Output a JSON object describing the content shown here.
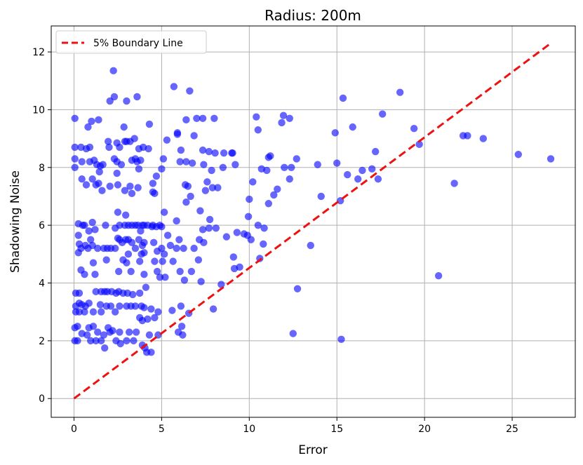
{
  "chart_data": {
    "type": "scatter",
    "title": "Radius: 200m",
    "xlabel": "Error",
    "ylabel": "Shadowing Noise",
    "xlim": [
      -1.3,
      28.6
    ],
    "ylim": [
      -0.65,
      12.9
    ],
    "xticks": [
      0,
      5,
      10,
      15,
      20,
      25
    ],
    "yticks": [
      0,
      2,
      4,
      6,
      8,
      10,
      12
    ],
    "grid": true,
    "legend_position": "top-left",
    "colors": {
      "points": "#0000ff",
      "boundary": "#ee1111",
      "grid": "#b0b0b0"
    },
    "boundary_line": {
      "name": "5% Boundary Line",
      "x": [
        0,
        27.2
      ],
      "y": [
        0,
        12.3
      ]
    },
    "series": [
      {
        "name": "",
        "points": [
          [
            0.05,
            9.7
          ],
          [
            0.05,
            8.7
          ],
          [
            0.05,
            8.3
          ],
          [
            0.05,
            8.0
          ],
          [
            0.1,
            3.65
          ],
          [
            0.1,
            3.2
          ],
          [
            0.1,
            3.0
          ],
          [
            0.05,
            2.45
          ],
          [
            0.05,
            2.0
          ],
          [
            0.25,
            6.05
          ],
          [
            0.25,
            5.65
          ],
          [
            0.3,
            5.35
          ],
          [
            0.25,
            5.05
          ],
          [
            0.3,
            3.65
          ],
          [
            0.3,
            3.3
          ],
          [
            0.3,
            3.0
          ],
          [
            0.2,
            2.5
          ],
          [
            0.2,
            2.0
          ],
          [
            0.4,
            8.7
          ],
          [
            0.45,
            8.2
          ],
          [
            0.45,
            7.6
          ],
          [
            0.5,
            6.0
          ],
          [
            0.4,
            5.2
          ],
          [
            0.4,
            4.45
          ],
          [
            0.45,
            3.25
          ],
          [
            0.45,
            2.25
          ],
          [
            0.6,
            6.0
          ],
          [
            0.65,
            5.3
          ],
          [
            0.6,
            4.3
          ],
          [
            0.65,
            3.2
          ],
          [
            0.6,
            3.0
          ],
          [
            0.7,
            8.65
          ],
          [
            0.7,
            7.4
          ],
          [
            0.75,
            2.2
          ],
          [
            0.8,
            9.4
          ],
          [
            0.85,
            5.8
          ],
          [
            0.8,
            5.2
          ],
          [
            0.85,
            3.3
          ],
          [
            0.85,
            2.45
          ],
          [
            0.9,
            8.7
          ],
          [
            0.9,
            8.2
          ],
          [
            0.95,
            5.5
          ],
          [
            0.95,
            2.0
          ],
          [
            1.0,
            9.6
          ],
          [
            1.05,
            7.6
          ],
          [
            1.05,
            6.1
          ],
          [
            1.05,
            5.3
          ],
          [
            1.1,
            4.7
          ],
          [
            1.1,
            3.0
          ],
          [
            1.1,
            2.5
          ],
          [
            1.15,
            8.25
          ],
          [
            1.2,
            5.85
          ],
          [
            1.2,
            4.3
          ],
          [
            1.25,
            3.7
          ],
          [
            1.25,
            2.0
          ],
          [
            1.25,
            7.4
          ],
          [
            1.3,
            8.1
          ],
          [
            1.35,
            5.2
          ],
          [
            1.35,
            2.3
          ],
          [
            1.4,
            9.65
          ],
          [
            1.4,
            7.45
          ],
          [
            1.45,
            7.85
          ],
          [
            1.5,
            8.05
          ],
          [
            1.5,
            3.25
          ],
          [
            1.55,
            3.7
          ],
          [
            1.55,
            3.0
          ],
          [
            1.55,
            2.0
          ],
          [
            1.6,
            7.2
          ],
          [
            1.65,
            8.1
          ],
          [
            1.7,
            5.2
          ],
          [
            1.7,
            2.2
          ],
          [
            1.75,
            1.75
          ],
          [
            1.75,
            3.7
          ],
          [
            1.8,
            6.0
          ],
          [
            1.85,
            4.8
          ],
          [
            1.85,
            3.2
          ],
          [
            1.9,
            5.2
          ],
          [
            1.9,
            3.7
          ],
          [
            1.95,
            2.45
          ],
          [
            1.95,
            8.9
          ],
          [
            2.0,
            8.7
          ],
          [
            2.05,
            7.35
          ],
          [
            2.05,
            2.3
          ],
          [
            2.05,
            10.3
          ],
          [
            2.1,
            5.2
          ],
          [
            2.1,
            3.2
          ],
          [
            2.15,
            3.7
          ],
          [
            2.2,
            2.35
          ],
          [
            2.25,
            11.35
          ],
          [
            2.3,
            10.45
          ],
          [
            2.3,
            8.3
          ],
          [
            2.35,
            5.9
          ],
          [
            2.35,
            5.2
          ],
          [
            2.35,
            3.0
          ],
          [
            2.4,
            3.65
          ],
          [
            2.4,
            2.0
          ],
          [
            2.45,
            8.85
          ],
          [
            2.45,
            8.2
          ],
          [
            2.45,
            7.8
          ],
          [
            2.5,
            7.4
          ],
          [
            2.5,
            6.45
          ],
          [
            2.5,
            5.55
          ],
          [
            2.55,
            4.4
          ],
          [
            2.55,
            3.7
          ],
          [
            2.6,
            8.7
          ],
          [
            2.6,
            6.0
          ],
          [
            2.6,
            5.5
          ],
          [
            2.6,
            3.2
          ],
          [
            2.6,
            2.3
          ],
          [
            2.65,
            1.9
          ],
          [
            2.7,
            8.1
          ],
          [
            2.75,
            5.4
          ],
          [
            2.8,
            4.8
          ],
          [
            2.8,
            3.65
          ],
          [
            2.85,
            9.4
          ],
          [
            2.9,
            8.9
          ],
          [
            2.9,
            7.2
          ],
          [
            2.9,
            6.0
          ],
          [
            2.95,
            6.35
          ],
          [
            2.95,
            5.5
          ],
          [
            3.0,
            10.3
          ],
          [
            3.0,
            8.9
          ],
          [
            3.0,
            4.7
          ],
          [
            3.0,
            3.2
          ],
          [
            3.0,
            2.0
          ],
          [
            3.05,
            3.65
          ],
          [
            3.1,
            6.0
          ],
          [
            3.1,
            5.5
          ],
          [
            3.1,
            5.0
          ],
          [
            3.15,
            2.3
          ],
          [
            3.2,
            8.9
          ],
          [
            3.2,
            7.35
          ],
          [
            3.25,
            4.4
          ],
          [
            3.25,
            3.2
          ],
          [
            3.3,
            8.25
          ],
          [
            3.3,
            7.1
          ],
          [
            3.3,
            6.0
          ],
          [
            3.3,
            5.4
          ],
          [
            3.35,
            3.6
          ],
          [
            3.4,
            2.0
          ],
          [
            3.45,
            9.0
          ],
          [
            3.5,
            8.3
          ],
          [
            3.5,
            6.0
          ],
          [
            3.5,
            5.2
          ],
          [
            3.5,
            3.2
          ],
          [
            3.55,
            2.3
          ],
          [
            3.6,
            10.45
          ],
          [
            3.6,
            8.2
          ],
          [
            3.65,
            7.3
          ],
          [
            3.65,
            6.0
          ],
          [
            3.7,
            8.65
          ],
          [
            3.7,
            7.95
          ],
          [
            3.7,
            5.5
          ],
          [
            3.75,
            4.75
          ],
          [
            3.75,
            3.65
          ],
          [
            3.75,
            2.8
          ],
          [
            3.8,
            8.25
          ],
          [
            3.8,
            5.8
          ],
          [
            3.85,
            5.0
          ],
          [
            3.85,
            3.2
          ],
          [
            3.9,
            6.0
          ],
          [
            3.9,
            5.3
          ],
          [
            3.9,
            2.7
          ],
          [
            3.9,
            1.85
          ],
          [
            3.95,
            8.7
          ],
          [
            4.0,
            6.0
          ],
          [
            4.0,
            5.4
          ],
          [
            4.0,
            5.05
          ],
          [
            4.0,
            4.3
          ],
          [
            4.0,
            3.15
          ],
          [
            4.05,
            1.75
          ],
          [
            4.1,
            3.85
          ],
          [
            4.15,
            1.6
          ],
          [
            4.2,
            6.0
          ],
          [
            4.2,
            2.75
          ],
          [
            4.25,
            8.65
          ],
          [
            4.3,
            9.5
          ],
          [
            4.3,
            2.2
          ],
          [
            4.4,
            1.6
          ],
          [
            4.4,
            3.1
          ],
          [
            4.45,
            5.95
          ],
          [
            4.5,
            7.45
          ],
          [
            4.5,
            7.15
          ],
          [
            4.5,
            6.0
          ],
          [
            4.55,
            5.4
          ],
          [
            4.6,
            7.1
          ],
          [
            4.6,
            4.75
          ],
          [
            4.6,
            2.8
          ],
          [
            4.7,
            7.7
          ],
          [
            4.7,
            5.95
          ],
          [
            4.75,
            5.1
          ],
          [
            4.75,
            4.4
          ],
          [
            4.8,
            3.0
          ],
          [
            4.8,
            2.2
          ],
          [
            4.9,
            6.0
          ],
          [
            4.9,
            4.2
          ],
          [
            5.0,
            7.95
          ],
          [
            5.0,
            5.95
          ],
          [
            5.0,
            5.2
          ],
          [
            5.05,
            4.75
          ],
          [
            5.1,
            8.3
          ],
          [
            5.15,
            6.45
          ],
          [
            5.15,
            5.0
          ],
          [
            5.2,
            4.2
          ],
          [
            5.3,
            8.95
          ],
          [
            5.35,
            5.65
          ],
          [
            5.5,
            5.3
          ],
          [
            5.6,
            3.05
          ],
          [
            5.65,
            4.75
          ],
          [
            5.7,
            10.8
          ],
          [
            5.85,
            6.15
          ],
          [
            5.85,
            5.2
          ],
          [
            5.9,
            9.15
          ],
          [
            5.9,
            9.2
          ],
          [
            5.95,
            2.3
          ],
          [
            6.0,
            5.5
          ],
          [
            6.05,
            8.2
          ],
          [
            6.05,
            4.4
          ],
          [
            6.1,
            8.6
          ],
          [
            6.1,
            3.2
          ],
          [
            6.15,
            2.5
          ],
          [
            6.2,
            2.2
          ],
          [
            6.25,
            5.2
          ],
          [
            6.3,
            4.1
          ],
          [
            6.35,
            7.4
          ],
          [
            6.4,
            9.65
          ],
          [
            6.4,
            8.2
          ],
          [
            6.4,
            6.8
          ],
          [
            6.5,
            7.35
          ],
          [
            6.55,
            2.95
          ],
          [
            6.6,
            10.65
          ],
          [
            6.65,
            7.0
          ],
          [
            6.7,
            4.4
          ],
          [
            6.75,
            8.15
          ],
          [
            6.85,
            9.1
          ],
          [
            6.85,
            5.2
          ],
          [
            7.0,
            9.7
          ],
          [
            7.1,
            4.8
          ],
          [
            7.15,
            5.5
          ],
          [
            7.2,
            6.5
          ],
          [
            7.25,
            4.05
          ],
          [
            7.35,
            9.7
          ],
          [
            7.35,
            8.6
          ],
          [
            7.35,
            5.85
          ],
          [
            7.4,
            5.4
          ],
          [
            7.4,
            8.1
          ],
          [
            7.5,
            7.2
          ],
          [
            7.6,
            7.5
          ],
          [
            7.7,
            8.55
          ],
          [
            7.7,
            5.9
          ],
          [
            7.75,
            6.2
          ],
          [
            7.85,
            7.9
          ],
          [
            7.9,
            7.3
          ],
          [
            7.95,
            3.1
          ],
          [
            8.0,
            9.7
          ],
          [
            8.05,
            8.5
          ],
          [
            8.1,
            5.9
          ],
          [
            8.2,
            7.3
          ],
          [
            8.4,
            3.95
          ],
          [
            8.5,
            8.0
          ],
          [
            8.55,
            8.5
          ],
          [
            8.7,
            5.6
          ],
          [
            9.0,
            8.5
          ],
          [
            9.05,
            8.5
          ],
          [
            9.1,
            4.9
          ],
          [
            9.15,
            4.5
          ],
          [
            9.2,
            8.1
          ],
          [
            9.3,
            5.75
          ],
          [
            9.45,
            4.55
          ],
          [
            9.7,
            5.7
          ],
          [
            9.9,
            5.65
          ],
          [
            9.95,
            6.3
          ],
          [
            10.0,
            6.9
          ],
          [
            10.1,
            5.5
          ],
          [
            10.2,
            7.5
          ],
          [
            10.4,
            9.75
          ],
          [
            10.5,
            9.3
          ],
          [
            10.5,
            6.0
          ],
          [
            10.6,
            4.85
          ],
          [
            10.7,
            7.95
          ],
          [
            10.8,
            5.35
          ],
          [
            10.85,
            5.9
          ],
          [
            11.0,
            7.9
          ],
          [
            11.1,
            8.35
          ],
          [
            11.1,
            6.75
          ],
          [
            11.2,
            8.4
          ],
          [
            11.4,
            7.05
          ],
          [
            11.6,
            7.25
          ],
          [
            11.85,
            9.55
          ],
          [
            11.95,
            9.8
          ],
          [
            12.0,
            8.0
          ],
          [
            12.3,
            7.6
          ],
          [
            12.3,
            9.7
          ],
          [
            12.4,
            8.0
          ],
          [
            12.5,
            2.25
          ],
          [
            12.75,
            3.8
          ],
          [
            12.7,
            8.3
          ],
          [
            13.5,
            5.3
          ],
          [
            13.9,
            8.1
          ],
          [
            14.1,
            7.0
          ],
          [
            14.9,
            9.2
          ],
          [
            15.0,
            8.15
          ],
          [
            15.2,
            6.85
          ],
          [
            15.25,
            2.05
          ],
          [
            15.35,
            10.4
          ],
          [
            15.6,
            7.75
          ],
          [
            15.9,
            9.4
          ],
          [
            16.2,
            7.6
          ],
          [
            16.45,
            7.9
          ],
          [
            17.0,
            7.95
          ],
          [
            17.2,
            8.55
          ],
          [
            17.35,
            7.6
          ],
          [
            17.6,
            9.85
          ],
          [
            18.6,
            10.6
          ],
          [
            19.4,
            9.35
          ],
          [
            19.7,
            8.8
          ],
          [
            20.8,
            4.25
          ],
          [
            21.7,
            7.45
          ],
          [
            22.2,
            9.1
          ],
          [
            22.45,
            9.1
          ],
          [
            23.35,
            9.0
          ],
          [
            25.35,
            8.45
          ],
          [
            27.2,
            8.3
          ]
        ]
      }
    ]
  }
}
